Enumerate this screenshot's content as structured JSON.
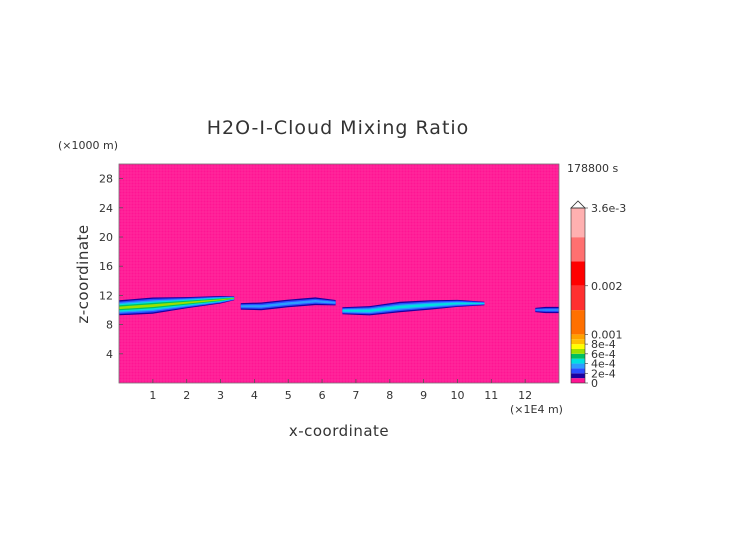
{
  "chart_data": {
    "type": "heatmap",
    "title": "H2O-I-Cloud Mixing Ratio",
    "xlabel": "x-coordinate",
    "ylabel": "z-coordinate",
    "x_unit": "(×1E4 m)",
    "y_unit": "(×1000 m)",
    "time_label": "178800 s",
    "xlim": [
      0,
      13
    ],
    "ylim": [
      0,
      30
    ],
    "x_ticks": [
      1,
      2,
      3,
      4,
      5,
      6,
      7,
      8,
      9,
      10,
      11,
      12
    ],
    "y_ticks": [
      4,
      8,
      12,
      16,
      20,
      24,
      28
    ],
    "background_value": 0,
    "background_color": "#ff1493",
    "colorbar": {
      "max_label": "3.6e-3",
      "labels": [
        {
          "value": 0.0036,
          "text": "3.6e-3"
        },
        {
          "value": 0.002,
          "text": "0.002"
        },
        {
          "value": 0.001,
          "text": "0.001"
        },
        {
          "value": 0.0008,
          "text": "8e-4"
        },
        {
          "value": 0.0006,
          "text": "6e-4"
        },
        {
          "value": 0.0004,
          "text": "4e-4"
        },
        {
          "value": 0.0002,
          "text": "2e-4"
        },
        {
          "value": 0,
          "text": "0"
        }
      ],
      "levels": [
        {
          "from": 0,
          "to": 0.0001,
          "color": "#ff1493"
        },
        {
          "from": 0.0001,
          "to": 0.0002,
          "color": "#1a00a0"
        },
        {
          "from": 0.0002,
          "to": 0.0003,
          "color": "#2a4dff"
        },
        {
          "from": 0.0003,
          "to": 0.0004,
          "color": "#2c9cff"
        },
        {
          "from": 0.0004,
          "to": 0.0005,
          "color": "#00e0e0"
        },
        {
          "from": 0.0005,
          "to": 0.0006,
          "color": "#00c060"
        },
        {
          "from": 0.0006,
          "to": 0.0007,
          "color": "#9be000"
        },
        {
          "from": 0.0007,
          "to": 0.0008,
          "color": "#ffff00"
        },
        {
          "from": 0.0008,
          "to": 0.0009,
          "color": "#ffc000"
        },
        {
          "from": 0.0009,
          "to": 0.001,
          "color": "#ffa000"
        },
        {
          "from": 0.001,
          "to": 0.0015,
          "color": "#ff7000"
        },
        {
          "from": 0.0015,
          "to": 0.002,
          "color": "#ff3030"
        },
        {
          "from": 0.002,
          "to": 0.0025,
          "color": "#ff0000"
        },
        {
          "from": 0.0025,
          "to": 0.003,
          "color": "#ff7070"
        },
        {
          "from": 0.003,
          "to": 0.0036,
          "color": "#ffb0b0"
        }
      ]
    },
    "features": [
      {
        "name": "cloud-left",
        "x": [
          0,
          1.0,
          2.0,
          3.0,
          3.4
        ],
        "z_center": [
          10.3,
          10.6,
          11.0,
          11.4,
          11.6
        ],
        "half_thickness": [
          1.2,
          1.3,
          0.9,
          0.6,
          0.3
        ],
        "peak": 0.0007
      },
      {
        "name": "cloud-mid",
        "x": [
          3.6,
          4.2,
          5.0,
          5.8,
          6.4
        ],
        "z_center": [
          10.5,
          10.5,
          10.9,
          11.2,
          11.0
        ],
        "half_thickness": [
          0.6,
          0.7,
          0.7,
          0.7,
          0.5
        ],
        "peak": 0.0004
      },
      {
        "name": "cloud-right",
        "x": [
          6.6,
          7.4,
          8.3,
          9.2,
          10.0,
          10.8
        ],
        "z_center": [
          9.9,
          9.9,
          10.4,
          10.7,
          10.9,
          10.9
        ],
        "half_thickness": [
          0.6,
          0.8,
          0.9,
          0.8,
          0.6,
          0.3
        ],
        "peak": 0.0005
      },
      {
        "name": "cloud-edge",
        "x": [
          12.3,
          12.6,
          13.0
        ],
        "z_center": [
          10.0,
          10.0,
          10.0
        ],
        "half_thickness": [
          0.4,
          0.6,
          0.6
        ],
        "peak": 0.00035
      }
    ]
  }
}
